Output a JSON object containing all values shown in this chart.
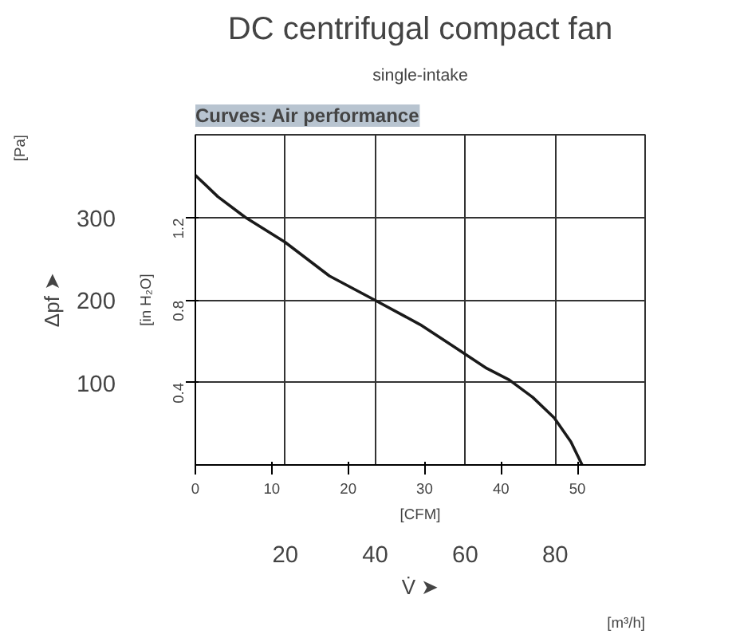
{
  "chart_data": {
    "type": "line",
    "title": "DC centrifugal compact fan",
    "subtitle": "single-intake",
    "annotations": [
      "Curves: Air performance",
      "[Pa]",
      "[m³/h]"
    ],
    "xlabel": "V̇ ➤",
    "ylabel": "Δpf ➤",
    "y2label": "[in H₂O]",
    "x2label": "[CFM]",
    "x": [
      0,
      5,
      11.1,
      19.9,
      29.8,
      39.8,
      50,
      57.3,
      64.8,
      69.8,
      75,
      79.8,
      83.5,
      86
    ],
    "series": [
      {
        "color": "#1a1a1a",
        "values": [
          351,
          325,
          300,
          270,
          229,
          200,
          170,
          144,
          117,
          103,
          82,
          57,
          28,
          0
        ]
      }
    ],
    "xlim": [
      0,
      100
    ],
    "xticks": [
      20,
      40,
      60,
      80
    ],
    "ylim": [
      0,
      400
    ],
    "yticks": [
      100,
      200,
      300
    ],
    "y2lim": [
      0,
      1.606
    ],
    "y2ticks": [
      0.4,
      0.8,
      1.2
    ],
    "x2lim": [
      0,
      58.86
    ],
    "x2ticks": [
      0,
      10,
      20,
      30,
      40,
      50
    ],
    "grid": true,
    "marker": "none",
    "line_style": "solid"
  }
}
